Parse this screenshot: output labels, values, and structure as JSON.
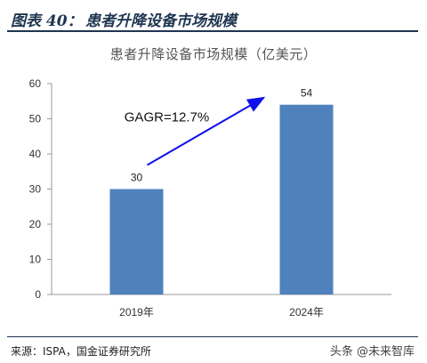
{
  "figure": {
    "label": "图表 40：",
    "title": "患者升降设备市场规模"
  },
  "chart_data": {
    "type": "bar",
    "title": "患者升降设备市场规模（亿美元）",
    "categories": [
      "2019年",
      "2024年"
    ],
    "values": [
      30,
      54
    ],
    "data_labels": [
      "30",
      "54"
    ],
    "ylim": [
      0,
      60
    ],
    "yticks": [
      0,
      10,
      20,
      30,
      40,
      50,
      60
    ],
    "grid": false,
    "legend": "none",
    "bar_color": "#4f81bd",
    "annotation": {
      "text": "GAGR=12.7%",
      "arrow_color": "#1010ee"
    }
  },
  "footer": {
    "source": "来源：ISPA，国金证券研究所",
    "watermark": "头条 @未来智库"
  }
}
